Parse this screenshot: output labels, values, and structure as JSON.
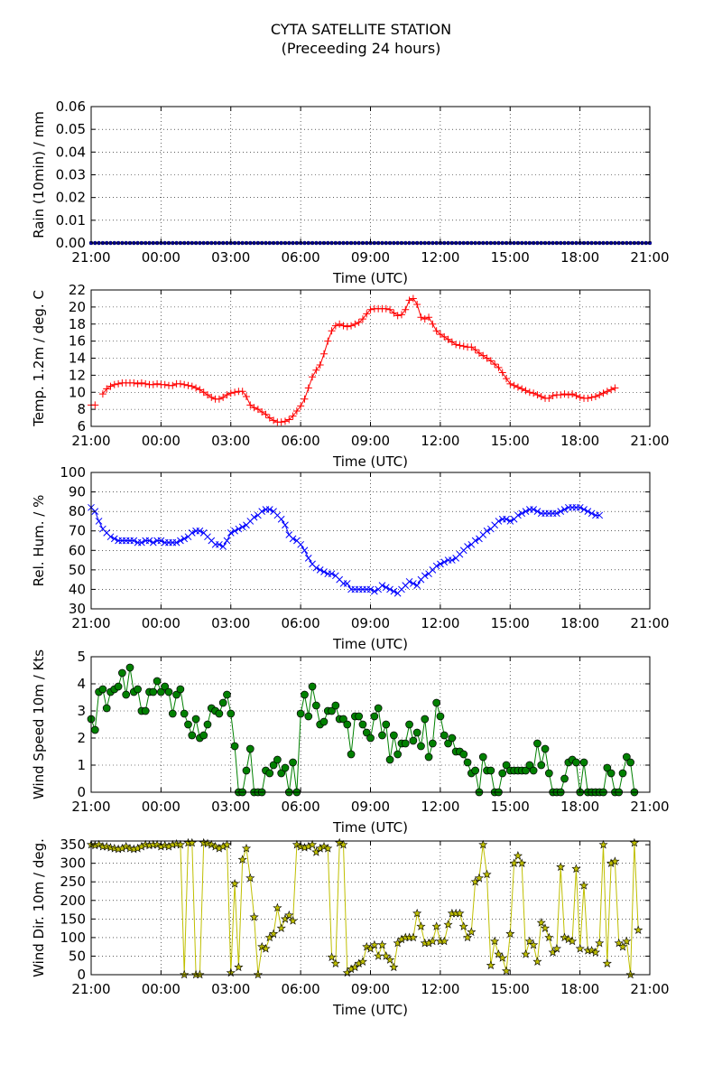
{
  "figure": {
    "title_line1": "CYTA SATELLITE STATION",
    "title_line2": "(Preceeding 24 hours)"
  },
  "chart_data": [
    {
      "type": "line",
      "ylabel": "Rain (10min) / mm",
      "xlabel": "Time (UTC)",
      "x_ticks": [
        "21:00",
        "00:00",
        "03:00",
        "06:00",
        "09:00",
        "12:00",
        "15:00",
        "18:00",
        "21:00"
      ],
      "x_range_hours": [
        0,
        24
      ],
      "ylim": [
        0,
        0.06
      ],
      "y_ticks": [
        0,
        0.01,
        0.02,
        0.03,
        0.04,
        0.05,
        0.06
      ],
      "y_tick_labels": [
        "0.00",
        "0.01",
        "0.02",
        "0.03",
        "0.04",
        "0.05",
        "0.06"
      ],
      "grid": true,
      "color": "#0000ff",
      "marker": "dot",
      "x_step_hours": 0.1667,
      "values": [
        0.0,
        0.0,
        0.0,
        0.0,
        0.0,
        0.0,
        0.0,
        0.0,
        0.0,
        0.0,
        0.0,
        0.0,
        0.0,
        0.0,
        0.0,
        0.0,
        0.0,
        0.0,
        0.0,
        0.0,
        0.0,
        0.0,
        0.0,
        0.0,
        0.0,
        0.0,
        0.0,
        0.0,
        0.0,
        0.0,
        0.0,
        0.0,
        0.0,
        0.0,
        0.0,
        0.0,
        0.0,
        0.0,
        0.0,
        0.0,
        0.0,
        0.0,
        0.0,
        0.0,
        0.0,
        0.0,
        0.0,
        0.0,
        0.0,
        0.0,
        0.0,
        0.0,
        0.0,
        0.0,
        0.0,
        0.0,
        0.0,
        0.0,
        0.0,
        0.0,
        0.0,
        0.0,
        0.0,
        0.0,
        0.0,
        0.0,
        0.0,
        0.0,
        0.0,
        0.0,
        0.0,
        0.0,
        0.0,
        0.0,
        0.0,
        0.0,
        0.0,
        0.0,
        0.0,
        0.0,
        0.0,
        0.0,
        0.0,
        0.0,
        0.0,
        0.0,
        0.0,
        0.0,
        0.0,
        0.0,
        0.0,
        0.0,
        0.0,
        0.0,
        0.0,
        0.0,
        0.0,
        0.0,
        0.0,
        0.0,
        0.0,
        0.0,
        0.0,
        0.0,
        0.0,
        0.0,
        0.0,
        0.0,
        0.0,
        0.0,
        0.0,
        0.0,
        0.0,
        0.0,
        0.0,
        0.0,
        0.0,
        0.0,
        0.0,
        0.0,
        0.0,
        0.0,
        0.0,
        0.0,
        0.0,
        0.0,
        0.0,
        0.0,
        0.0,
        0.0,
        0.0,
        0.0,
        0.0,
        0.0,
        0.0,
        0.0,
        0.0,
        0.0,
        0.0,
        0.0,
        0.0,
        0.0,
        0.0,
        0.0,
        0.0
      ]
    },
    {
      "type": "line",
      "ylabel": "Temp. 1.2m / deg. C",
      "xlabel": "Time (UTC)",
      "x_ticks": [
        "21:00",
        "00:00",
        "03:00",
        "06:00",
        "09:00",
        "12:00",
        "15:00",
        "18:00",
        "21:00"
      ],
      "x_range_hours": [
        0,
        24
      ],
      "ylim": [
        6,
        22
      ],
      "y_ticks": [
        6,
        8,
        10,
        12,
        14,
        16,
        18,
        20,
        22
      ],
      "y_tick_labels": [
        "6",
        "8",
        "10",
        "12",
        "14",
        "16",
        "18",
        "20",
        "22"
      ],
      "grid": true,
      "color": "#ff0000",
      "marker": "plus",
      "x_step_hours": 0.1667,
      "values": [
        8.5,
        8.5,
        null,
        9.8,
        10.4,
        10.7,
        10.9,
        11.0,
        11.1,
        11.1,
        11.1,
        11.1,
        11.0,
        11.1,
        11.0,
        10.9,
        10.9,
        11.0,
        10.9,
        10.9,
        10.8,
        10.8,
        11.0,
        11.0,
        10.9,
        10.8,
        10.7,
        10.5,
        10.3,
        10.0,
        9.7,
        9.4,
        9.2,
        9.2,
        9.4,
        9.7,
        9.9,
        10.0,
        10.1,
        10.1,
        9.5,
        8.5,
        8.2,
        8.0,
        7.7,
        7.4,
        7.0,
        6.7,
        6.5,
        6.5,
        6.6,
        6.8,
        7.2,
        7.8,
        8.4,
        9.2,
        10.5,
        11.8,
        12.6,
        13.2,
        14.5,
        16.0,
        17.2,
        17.8,
        18.0,
        17.8,
        17.7,
        17.8,
        18.0,
        18.2,
        18.6,
        19.2,
        19.7,
        19.8,
        19.8,
        19.8,
        19.8,
        19.7,
        19.3,
        19.0,
        19.1,
        19.7,
        20.8,
        21.0,
        20.3,
        18.8,
        18.6,
        18.8,
        18.0,
        17.2,
        16.8,
        16.5,
        16.2,
        15.9,
        15.6,
        15.5,
        15.4,
        15.3,
        15.3,
        15.0,
        14.6,
        14.3,
        14.0,
        13.7,
        13.3,
        12.9,
        12.3,
        11.6,
        11.0,
        10.8,
        10.6,
        10.4,
        10.2,
        10.0,
        9.9,
        9.7,
        9.5,
        9.3,
        9.3,
        9.6,
        9.7,
        9.7,
        9.8,
        9.7,
        9.8,
        9.6,
        9.4,
        9.3,
        9.3,
        9.4,
        9.5,
        9.7,
        9.9,
        10.1,
        10.3,
        10.5
      ]
    },
    {
      "type": "line",
      "ylabel": "Rel. Hum. / %",
      "xlabel": "Time (UTC)",
      "x_ticks": [
        "21:00",
        "00:00",
        "03:00",
        "06:00",
        "09:00",
        "12:00",
        "15:00",
        "18:00",
        "21:00"
      ],
      "x_range_hours": [
        0,
        24
      ],
      "ylim": [
        30,
        100
      ],
      "y_ticks": [
        30,
        40,
        50,
        60,
        70,
        80,
        90,
        100
      ],
      "y_tick_labels": [
        "30",
        "40",
        "50",
        "60",
        "70",
        "80",
        "90",
        "100"
      ],
      "grid": true,
      "color": "#0000ff",
      "marker": "x",
      "x_step_hours": 0.1667,
      "values": [
        82,
        80,
        75,
        71,
        69,
        67,
        66,
        65,
        65,
        65,
        65,
        65,
        64,
        64,
        65,
        65,
        64,
        65,
        65,
        64,
        64,
        64,
        64,
        65,
        66,
        67,
        69,
        70,
        70,
        69,
        67,
        65,
        63,
        63,
        62,
        65,
        69,
        70,
        71,
        72,
        73,
        75,
        77,
        78,
        80,
        81,
        81,
        80,
        78,
        76,
        73,
        68,
        66,
        65,
        63,
        60,
        56,
        53,
        51,
        50,
        49,
        48,
        48,
        47,
        45,
        43,
        43,
        40,
        40,
        40,
        40,
        40,
        40,
        39,
        40,
        42,
        41,
        40,
        39,
        38,
        40,
        42,
        44,
        43,
        42,
        45,
        47,
        48,
        50,
        52,
        53,
        54,
        55,
        55,
        56,
        58,
        60,
        62,
        63,
        65,
        66,
        68,
        70,
        71,
        73,
        75,
        76,
        76,
        75,
        76,
        78,
        79,
        80,
        81,
        81,
        80,
        79,
        79,
        79,
        79,
        79,
        80,
        81,
        82,
        82,
        82,
        82,
        81,
        80,
        79,
        78,
        78
      ]
    },
    {
      "type": "line",
      "ylabel": "Wind Speed 10m / Kts",
      "xlabel": "Time (UTC)",
      "x_ticks": [
        "21:00",
        "00:00",
        "03:00",
        "06:00",
        "09:00",
        "12:00",
        "15:00",
        "18:00",
        "21:00"
      ],
      "x_range_hours": [
        0,
        24
      ],
      "ylim": [
        0,
        5
      ],
      "y_ticks": [
        0,
        1,
        2,
        3,
        4,
        5
      ],
      "y_tick_labels": [
        "0",
        "1",
        "2",
        "3",
        "4",
        "5"
      ],
      "grid": true,
      "color": "#008000",
      "marker": "circle",
      "x_step_hours": 0.1667,
      "values": [
        2.7,
        2.3,
        3.7,
        3.8,
        3.1,
        3.7,
        3.8,
        3.9,
        4.4,
        3.6,
        4.6,
        3.7,
        3.8,
        3.0,
        3.0,
        3.7,
        3.7,
        4.1,
        3.7,
        3.9,
        3.7,
        2.9,
        3.6,
        3.8,
        2.9,
        2.5,
        2.1,
        2.7,
        2.0,
        2.1,
        2.5,
        3.1,
        3.0,
        2.9,
        3.3,
        3.6,
        2.9,
        1.7,
        0.0,
        0.0,
        0.8,
        1.6,
        0.0,
        0.0,
        0.0,
        0.8,
        0.7,
        1.0,
        1.2,
        0.7,
        0.9,
        0.0,
        1.1,
        0.0,
        2.9,
        3.6,
        2.8,
        3.9,
        3.2,
        2.5,
        2.6,
        3.0,
        3.0,
        3.2,
        2.7,
        2.7,
        2.5,
        1.4,
        2.8,
        2.8,
        2.5,
        2.2,
        2.0,
        2.8,
        3.1,
        2.1,
        2.5,
        1.2,
        2.1,
        1.4,
        1.8,
        1.8,
        2.5,
        1.9,
        2.2,
        1.7,
        2.7,
        1.3,
        1.8,
        3.3,
        2.8,
        2.1,
        1.8,
        2.0,
        1.5,
        1.5,
        1.4,
        1.1,
        0.7,
        0.8,
        0.0,
        1.3,
        0.8,
        0.8,
        0.0,
        0.0,
        0.7,
        1.0,
        0.8,
        0.8,
        0.8,
        0.8,
        0.8,
        1.0,
        0.8,
        1.8,
        1.0,
        1.6,
        0.7,
        0.0,
        0.0,
        0.0,
        0.5,
        1.1,
        1.2,
        1.1,
        0.0,
        1.1,
        0.0,
        0.0,
        0.0,
        0.0,
        0.0,
        0.9,
        0.7,
        0.0,
        0.0,
        0.7,
        1.3,
        1.1,
        0.0
      ]
    },
    {
      "type": "line",
      "ylabel": "Wind Dir. 10m / deg.",
      "xlabel": "Time (UTC)",
      "x_ticks": [
        "21:00",
        "00:00",
        "03:00",
        "06:00",
        "09:00",
        "12:00",
        "15:00",
        "18:00",
        "21:00"
      ],
      "x_range_hours": [
        0,
        24
      ],
      "ylim": [
        0,
        360
      ],
      "y_ticks": [
        0,
        50,
        100,
        150,
        200,
        250,
        300,
        350
      ],
      "y_tick_labels": [
        "0",
        "50",
        "100",
        "150",
        "200",
        "250",
        "300",
        "350"
      ],
      "grid": true,
      "color": "#bfbf00",
      "marker": "star",
      "x_step_hours": 0.1667,
      "values": [
        350,
        348,
        350,
        345,
        345,
        342,
        340,
        338,
        340,
        345,
        340,
        338,
        340,
        345,
        350,
        348,
        350,
        350,
        345,
        348,
        345,
        350,
        352,
        350,
        0,
        355,
        355,
        0,
        0,
        355,
        353,
        350,
        345,
        340,
        345,
        350,
        5,
        245,
        20,
        310,
        340,
        260,
        155,
        0,
        75,
        70,
        100,
        110,
        180,
        125,
        150,
        160,
        145,
        350,
        345,
        342,
        345,
        350,
        330,
        340,
        345,
        340,
        47,
        30,
        355,
        350,
        5,
        15,
        20,
        30,
        35,
        75,
        70,
        80,
        50,
        80,
        50,
        40,
        20,
        85,
        95,
        100,
        100,
        100,
        165,
        130,
        85,
        85,
        90,
        130,
        90,
        90,
        135,
        165,
        165,
        165,
        130,
        100,
        115,
        250,
        260,
        350,
        270,
        25,
        90,
        55,
        45,
        10,
        110,
        300,
        320,
        300,
        55,
        90,
        80,
        35,
        140,
        125,
        100,
        60,
        70,
        290,
        100,
        95,
        90,
        285,
        70,
        240,
        65,
        65,
        60,
        85,
        350,
        30,
        300,
        305,
        85,
        75,
        90,
        0,
        355,
        120
      ]
    }
  ]
}
